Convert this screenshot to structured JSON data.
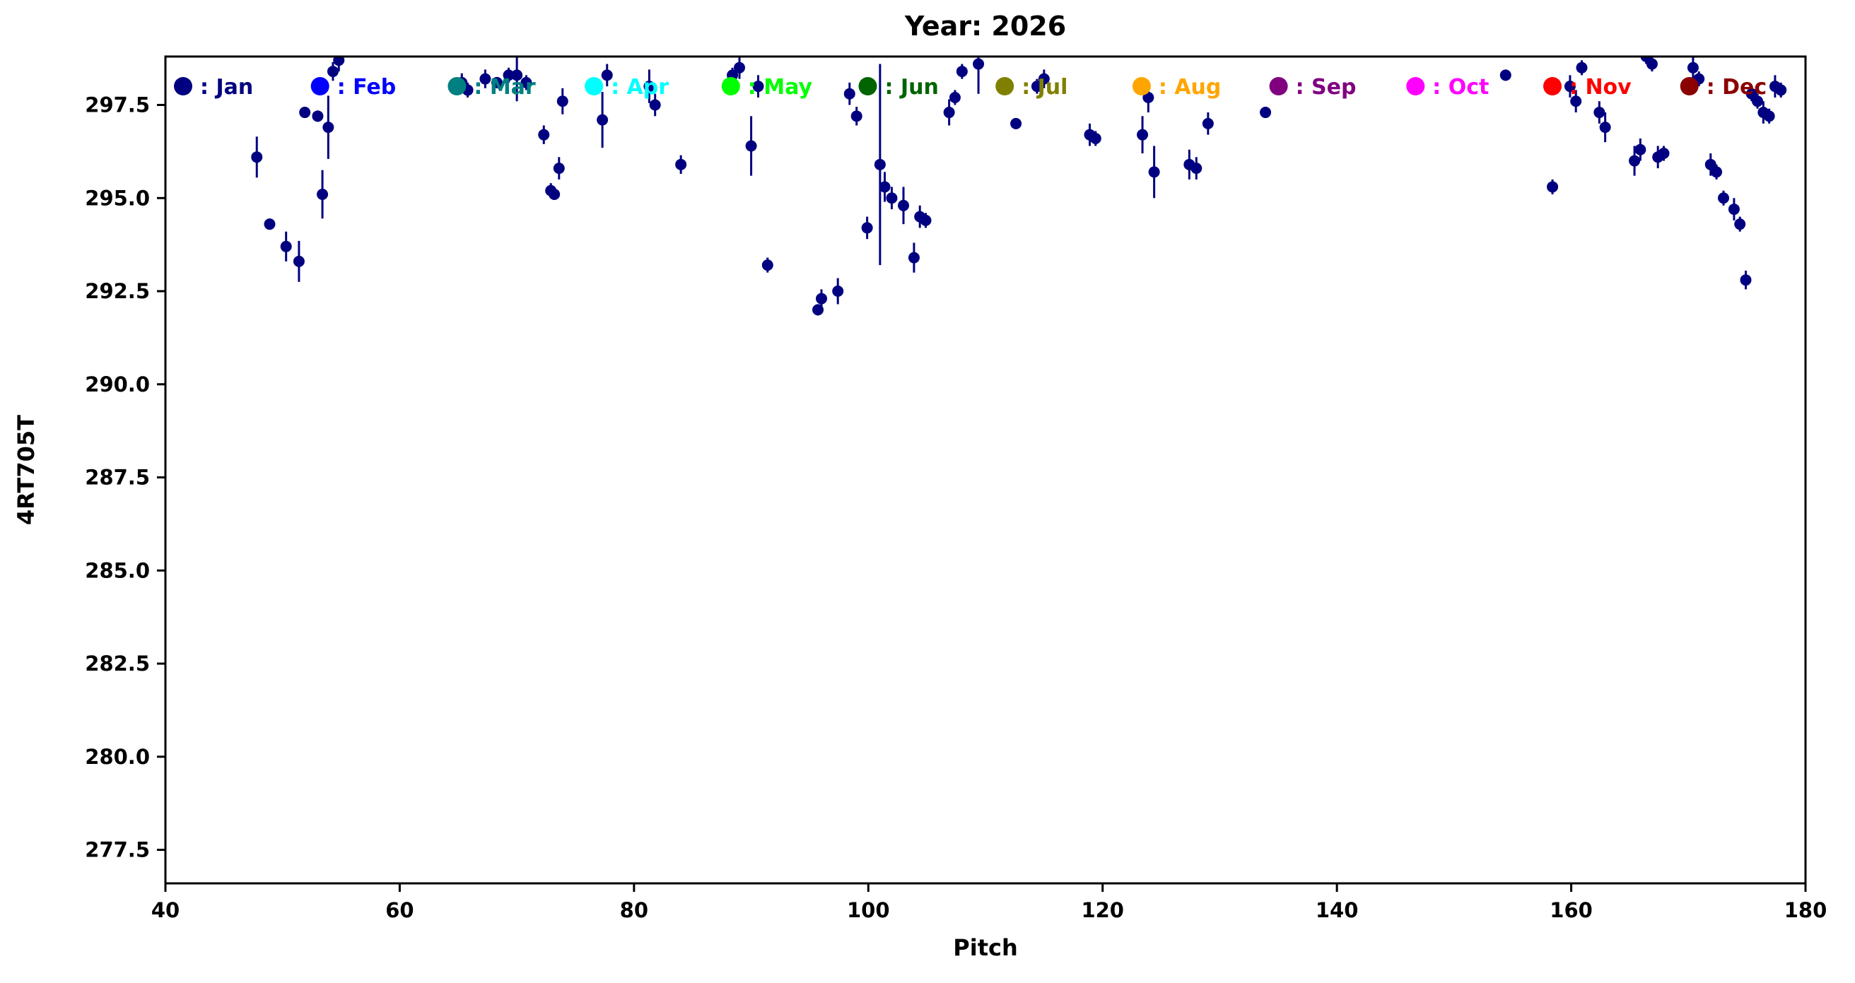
{
  "title": "Year: 2026",
  "chart_data": {
    "type": "scatter",
    "title": "Year: 2026",
    "xlabel": "Pitch",
    "ylabel": "4RT705T",
    "xlim": [
      40,
      180
    ],
    "ylim": [
      276.6,
      298.8
    ],
    "xticks": [
      "40",
      "60",
      "80",
      "100",
      "120",
      "140",
      "160",
      "180"
    ],
    "yticks": [
      "277.5",
      "280.0",
      "282.5",
      "285.0",
      "287.5",
      "290.0",
      "292.5",
      "295.0",
      "297.5"
    ],
    "grid": false,
    "legend_position": "top-inside",
    "marker_color": "#000080",
    "errorbar": true,
    "legend": [
      {
        "label": ": Jan",
        "color": "#000080"
      },
      {
        "label": ": Feb",
        "color": "#0000ff"
      },
      {
        "label": ": Mar",
        "color": "#008080"
      },
      {
        "label": ": Apr",
        "color": "#00ffff"
      },
      {
        "label": ": May",
        "color": "#00ff00"
      },
      {
        "label": ": Jun",
        "color": "#006400"
      },
      {
        "label": ": Jul",
        "color": "#808000"
      },
      {
        "label": ": Aug",
        "color": "#ffa500"
      },
      {
        "label": ": Sep",
        "color": "#800080"
      },
      {
        "label": ": Oct",
        "color": "#ff00ff"
      },
      {
        "label": ": Nov",
        "color": "#ff0000"
      },
      {
        "label": ": Dec",
        "color": "#8b0000"
      }
    ],
    "series": [
      {
        "name": "Jan",
        "color": "#000080",
        "points_format": [
          "pitch",
          "value",
          "error"
        ],
        "points": [
          [
            47.8,
            296.1,
            0.55
          ],
          [
            48.9,
            294.3,
            0.15
          ],
          [
            50.3,
            293.7,
            0.4
          ],
          [
            51.4,
            293.3,
            0.55
          ],
          [
            51.9,
            297.3,
            0.1
          ],
          [
            53.0,
            297.2,
            0.15
          ],
          [
            53.4,
            295.1,
            0.65
          ],
          [
            53.9,
            296.9,
            0.85
          ],
          [
            54.3,
            298.4,
            0.25
          ],
          [
            54.8,
            298.7,
            0.3
          ],
          [
            65.3,
            298.1,
            0.25
          ],
          [
            65.8,
            297.9,
            0.2
          ],
          [
            67.3,
            298.2,
            0.25
          ],
          [
            68.3,
            298.1,
            0.15
          ],
          [
            69.3,
            298.3,
            0.2
          ],
          [
            70.0,
            298.3,
            0.7
          ],
          [
            70.8,
            298.1,
            0.2
          ],
          [
            72.3,
            296.7,
            0.25
          ],
          [
            72.9,
            295.2,
            0.2
          ],
          [
            73.2,
            295.1,
            0.15
          ],
          [
            73.6,
            295.8,
            0.3
          ],
          [
            73.9,
            297.6,
            0.35
          ],
          [
            77.3,
            297.1,
            0.75
          ],
          [
            77.7,
            298.3,
            0.3
          ],
          [
            81.3,
            298.0,
            0.45
          ],
          [
            81.8,
            297.5,
            0.3
          ],
          [
            84.0,
            295.9,
            0.25
          ],
          [
            88.4,
            298.3,
            0.2
          ],
          [
            89.0,
            298.5,
            0.3
          ],
          [
            90.0,
            296.4,
            0.8
          ],
          [
            90.6,
            298.0,
            0.3
          ],
          [
            91.4,
            293.2,
            0.2
          ],
          [
            95.7,
            292.0,
            0.15
          ],
          [
            96.0,
            292.3,
            0.25
          ],
          [
            97.4,
            292.5,
            0.35
          ],
          [
            98.4,
            297.8,
            0.3
          ],
          [
            99.0,
            297.2,
            0.25
          ],
          [
            99.9,
            294.2,
            0.3
          ],
          [
            101.0,
            295.9,
            2.7
          ],
          [
            101.4,
            295.3,
            0.4
          ],
          [
            102.0,
            295.0,
            0.3
          ],
          [
            103.0,
            294.8,
            0.5
          ],
          [
            103.9,
            293.4,
            0.4
          ],
          [
            104.4,
            294.5,
            0.3
          ],
          [
            104.9,
            294.4,
            0.2
          ],
          [
            106.9,
            297.3,
            0.35
          ],
          [
            107.4,
            297.7,
            0.2
          ],
          [
            108.0,
            298.4,
            0.2
          ],
          [
            109.4,
            298.6,
            0.8
          ],
          [
            112.6,
            297.0,
            0.1
          ],
          [
            114.4,
            298.0,
            0.2
          ],
          [
            115.0,
            298.2,
            0.25
          ],
          [
            118.9,
            296.7,
            0.3
          ],
          [
            119.4,
            296.6,
            0.2
          ],
          [
            123.4,
            296.7,
            0.5
          ],
          [
            123.9,
            297.7,
            0.4
          ],
          [
            124.4,
            295.7,
            0.7
          ],
          [
            127.4,
            295.9,
            0.4
          ],
          [
            128.0,
            295.8,
            0.3
          ],
          [
            129.0,
            297.0,
            0.3
          ],
          [
            133.9,
            297.3,
            0.1
          ],
          [
            154.4,
            298.3,
            0.15
          ],
          [
            158.4,
            295.3,
            0.2
          ],
          [
            159.9,
            298.0,
            0.3
          ],
          [
            160.4,
            297.6,
            0.3
          ],
          [
            160.9,
            298.5,
            0.2
          ],
          [
            162.4,
            297.3,
            0.3
          ],
          [
            162.9,
            296.9,
            0.4
          ],
          [
            165.4,
            296.0,
            0.4
          ],
          [
            165.9,
            296.3,
            0.3
          ],
          [
            166.4,
            298.8,
            0.2
          ],
          [
            166.9,
            298.6,
            0.2
          ],
          [
            167.4,
            296.1,
            0.3
          ],
          [
            167.9,
            296.2,
            0.2
          ],
          [
            170.4,
            298.5,
            0.3
          ],
          [
            170.9,
            298.2,
            0.2
          ],
          [
            171.9,
            295.9,
            0.3
          ],
          [
            172.4,
            295.7,
            0.2
          ],
          [
            173.0,
            295.0,
            0.2
          ],
          [
            173.9,
            294.7,
            0.3
          ],
          [
            174.4,
            294.3,
            0.2
          ],
          [
            174.9,
            292.8,
            0.25
          ],
          [
            175.4,
            297.8,
            0.2
          ],
          [
            175.9,
            297.6,
            0.2
          ],
          [
            176.4,
            297.3,
            0.3
          ],
          [
            176.9,
            297.2,
            0.2
          ],
          [
            177.4,
            298.0,
            0.3
          ],
          [
            177.9,
            297.9,
            0.2
          ]
        ]
      }
    ]
  }
}
